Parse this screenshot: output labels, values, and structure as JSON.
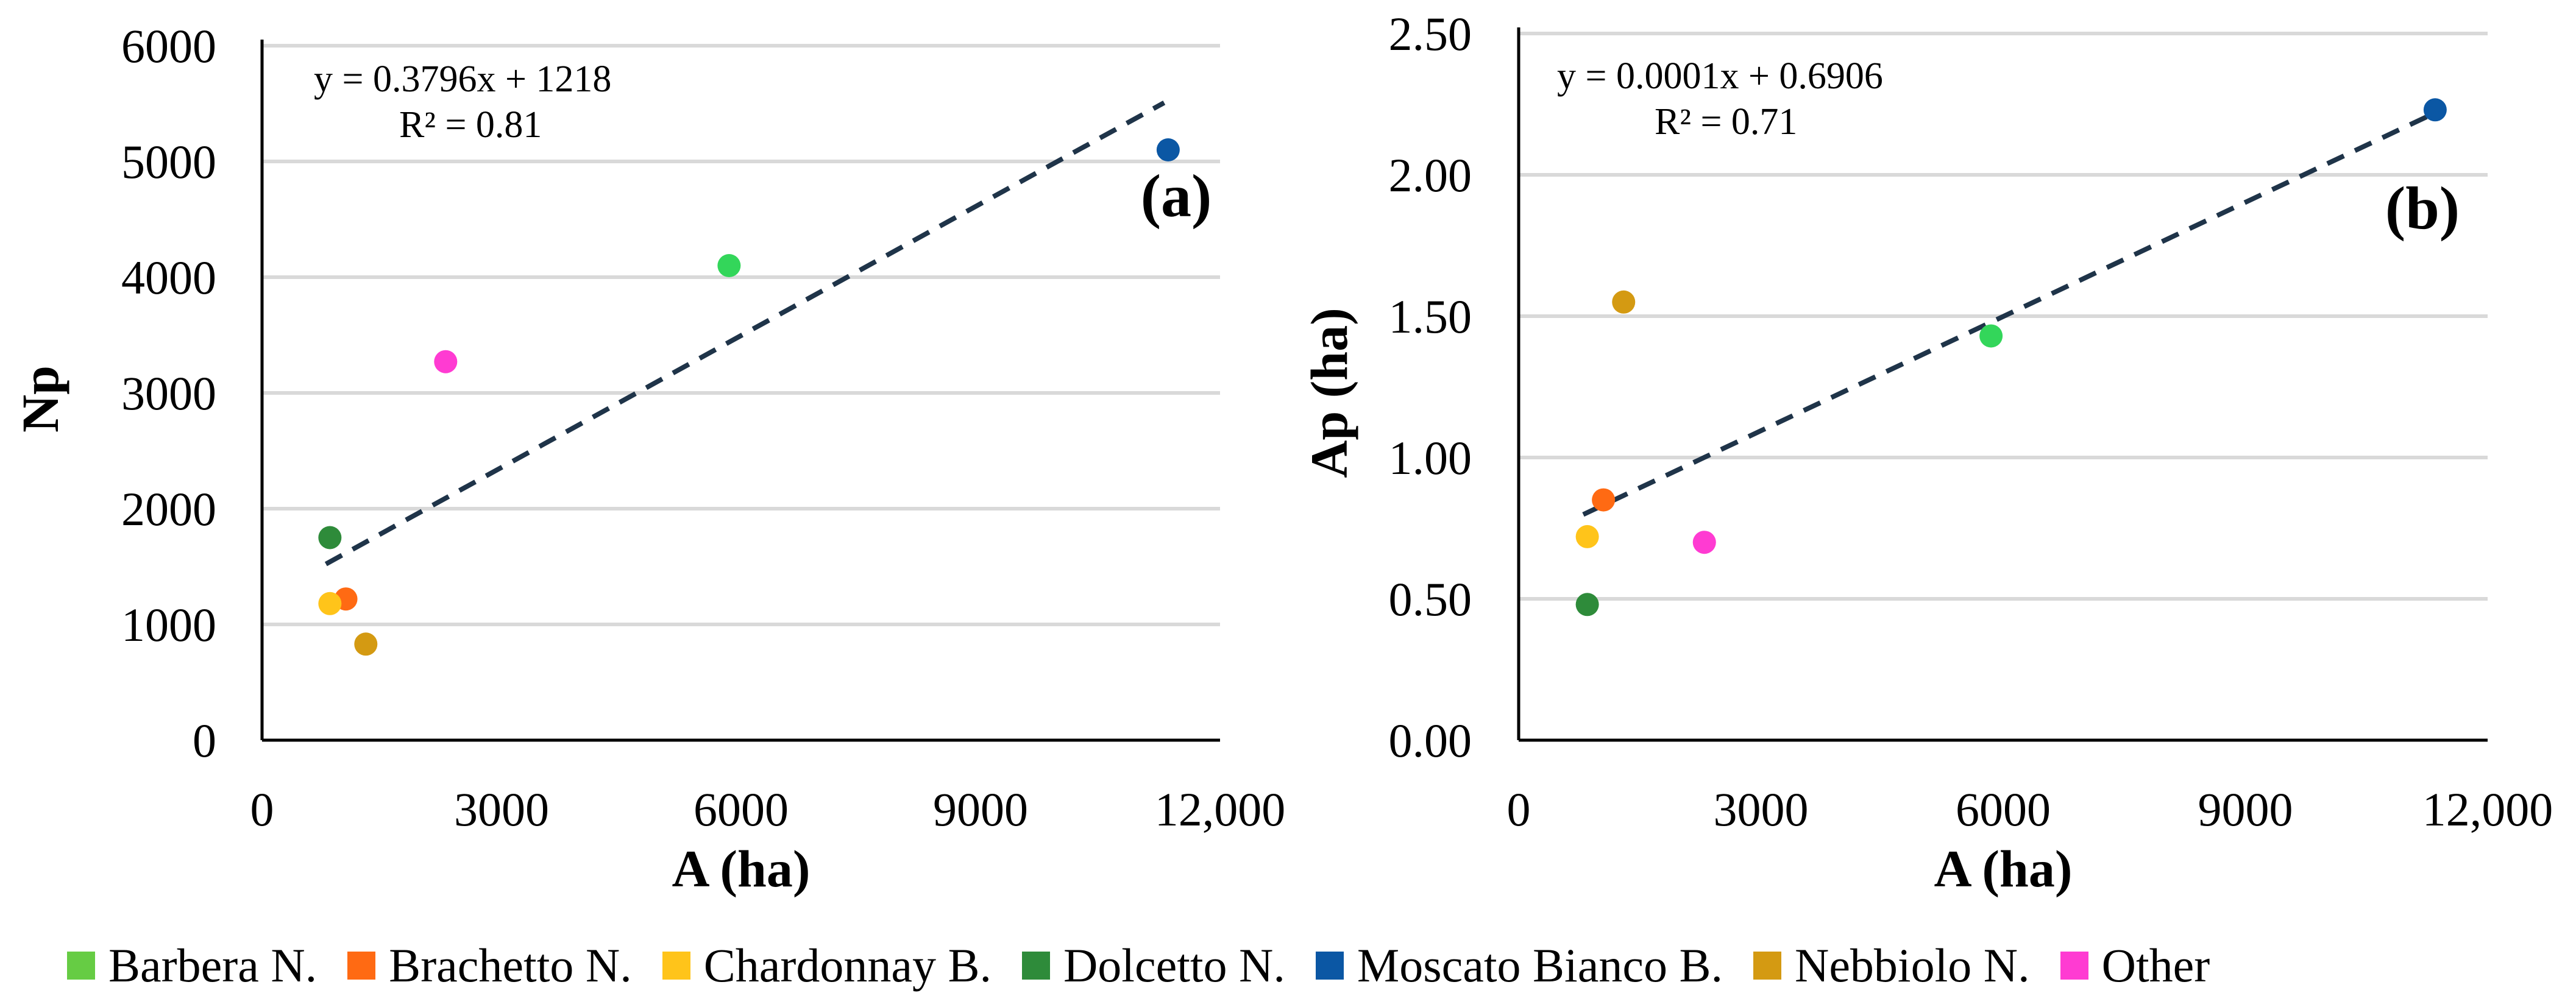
{
  "chart_data": [
    {
      "type": "scatter",
      "panel_label": "(a)",
      "xlabel": "A (ha)",
      "ylabel": "Np",
      "xlim": [
        0,
        12000
      ],
      "ylim": [
        0,
        6000
      ],
      "x_ticks": [
        "0",
        "3000",
        "6000",
        "9000",
        "12,000"
      ],
      "x_tick_values": [
        0,
        3000,
        6000,
        9000,
        12000
      ],
      "y_ticks": [
        "0",
        "1000",
        "2000",
        "3000",
        "4000",
        "5000",
        "6000"
      ],
      "y_tick_values": [
        0,
        1000,
        2000,
        3000,
        4000,
        5000,
        6000
      ],
      "grid": "horizontal",
      "equation": "y = 0.3796x + 1218",
      "r_squared": "R² = 0.81",
      "trendline": {
        "slope": 0.3796,
        "intercept": 1218,
        "x_range": [
          800,
          11300
        ]
      },
      "points": [
        {
          "series": "Barbera N.",
          "x": 5850,
          "y": 4100
        },
        {
          "series": "Brachetto N.",
          "x": 1050,
          "y": 1220
        },
        {
          "series": "Chardonnay B.",
          "x": 850,
          "y": 1180
        },
        {
          "series": "Dolcetto N.",
          "x": 850,
          "y": 1750
        },
        {
          "series": "Moscato Bianco B.",
          "x": 11350,
          "y": 5100
        },
        {
          "series": "Nebbiolo N.",
          "x": 1300,
          "y": 830
        },
        {
          "series": "Other",
          "x": 2300,
          "y": 3270
        }
      ]
    },
    {
      "type": "scatter",
      "panel_label": "(b)",
      "xlabel": "A (ha)",
      "ylabel": "Ap (ha)",
      "xlim": [
        0,
        12000
      ],
      "ylim": [
        0,
        2.5
      ],
      "x_ticks": [
        "0",
        "3000",
        "6000",
        "9000",
        "12,000"
      ],
      "x_tick_values": [
        0,
        3000,
        6000,
        9000,
        12000
      ],
      "y_ticks": [
        "0.00",
        "0.50",
        "1.00",
        "1.50",
        "2.00",
        "2.50"
      ],
      "y_tick_values": [
        0,
        0.5,
        1.0,
        1.5,
        2.0,
        2.5
      ],
      "grid": "horizontal",
      "equation": "y = 0.0001x + 0.6906",
      "r_squared": "R² = 0.71",
      "trendline": {
        "slope": 0.0001347,
        "intercept": 0.6906,
        "x_range": [
          800,
          11300
        ]
      },
      "points": [
        {
          "series": "Barbera N.",
          "x": 5850,
          "y": 1.43
        },
        {
          "series": "Brachetto N.",
          "x": 1050,
          "y": 0.85
        },
        {
          "series": "Chardonnay B.",
          "x": 850,
          "y": 0.72
        },
        {
          "series": "Dolcetto N.",
          "x": 850,
          "y": 0.48
        },
        {
          "series": "Moscato Bianco B.",
          "x": 11350,
          "y": 2.23
        },
        {
          "series": "Nebbiolo N.",
          "x": 1300,
          "y": 1.55
        },
        {
          "series": "Other",
          "x": 2300,
          "y": 0.7
        }
      ]
    }
  ],
  "legend": [
    {
      "label": "Barbera N.",
      "color": "#33d65a",
      "swatch": "#66cc44"
    },
    {
      "label": "Brachetto N.",
      "color": "#ff6a13",
      "swatch": "#ff6a13"
    },
    {
      "label": "Chardonnay B.",
      "color": "#ffc41a",
      "swatch": "#ffc41a"
    },
    {
      "label": "Dolcetto N.",
      "color": "#2e8b3a",
      "swatch": "#2e8b3a"
    },
    {
      "label": "Moscato Bianco B.",
      "color": "#0b57a4",
      "swatch": "#0b57a4"
    },
    {
      "label": "Nebbiolo N.",
      "color": "#d49a12",
      "swatch": "#d49a12"
    },
    {
      "label": "Other",
      "color": "#ff3bd2",
      "swatch": "#ff3bd2"
    }
  ],
  "colors": {
    "trendline": "#1f3449",
    "grid": "#d9d9d9",
    "axis": "#000000"
  }
}
